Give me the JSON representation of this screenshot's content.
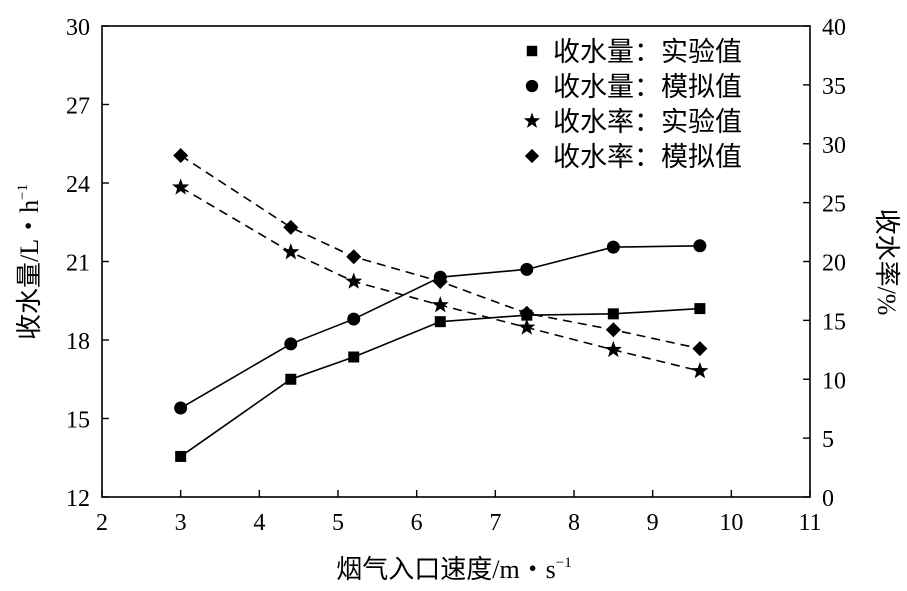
{
  "chart_data": {
    "type": "line",
    "title": "",
    "xlabel": "烟气入口速度/m・s",
    "xlabel_sup": "−1",
    "ylabel_left": "收水量/L・h",
    "ylabel_left_sup": "−1",
    "ylabel_right": "收水率/%",
    "xlim": [
      2,
      11
    ],
    "ylim_left": [
      12,
      30
    ],
    "ylim_right": [
      0,
      40
    ],
    "x_ticks": [
      "2",
      "3",
      "4",
      "5",
      "6",
      "7",
      "8",
      "9",
      "10",
      "11"
    ],
    "y_left_ticks": [
      "12",
      "15",
      "18",
      "21",
      "24",
      "27",
      "30"
    ],
    "y_right_ticks": [
      "0",
      "5",
      "10",
      "15",
      "20",
      "25",
      "30",
      "35",
      "40"
    ],
    "grid": false,
    "legend_position": "top-right",
    "series": [
      {
        "name": "收水量：实验值",
        "axis": "left",
        "marker": "square",
        "line": "solid",
        "x": [
          3,
          4.4,
          5.2,
          6.3,
          7.4,
          8.5,
          9.6
        ],
        "values": [
          13.55,
          16.5,
          17.35,
          18.7,
          18.95,
          19.0,
          19.2
        ]
      },
      {
        "name": "收水量：模拟值",
        "axis": "left",
        "marker": "circle",
        "line": "solid",
        "x": [
          3,
          4.4,
          5.2,
          6.3,
          7.4,
          8.5,
          9.6
        ],
        "values": [
          15.4,
          17.85,
          18.8,
          20.4,
          20.7,
          21.55,
          21.6
        ]
      },
      {
        "name": "收水率：实验值",
        "axis": "right",
        "marker": "star",
        "line": "dashed",
        "x": [
          3,
          4.4,
          5.2,
          6.3,
          7.4,
          8.5,
          9.6
        ],
        "values": [
          26.3,
          20.8,
          18.3,
          16.3,
          14.4,
          12.5,
          10.7
        ]
      },
      {
        "name": "收水率：模拟值",
        "axis": "right",
        "marker": "diamond",
        "line": "dashed",
        "x": [
          3,
          4.4,
          5.2,
          6.3,
          7.4,
          8.5,
          9.6
        ],
        "values": [
          29.0,
          22.9,
          20.4,
          18.3,
          15.6,
          14.2,
          12.6
        ]
      }
    ]
  }
}
